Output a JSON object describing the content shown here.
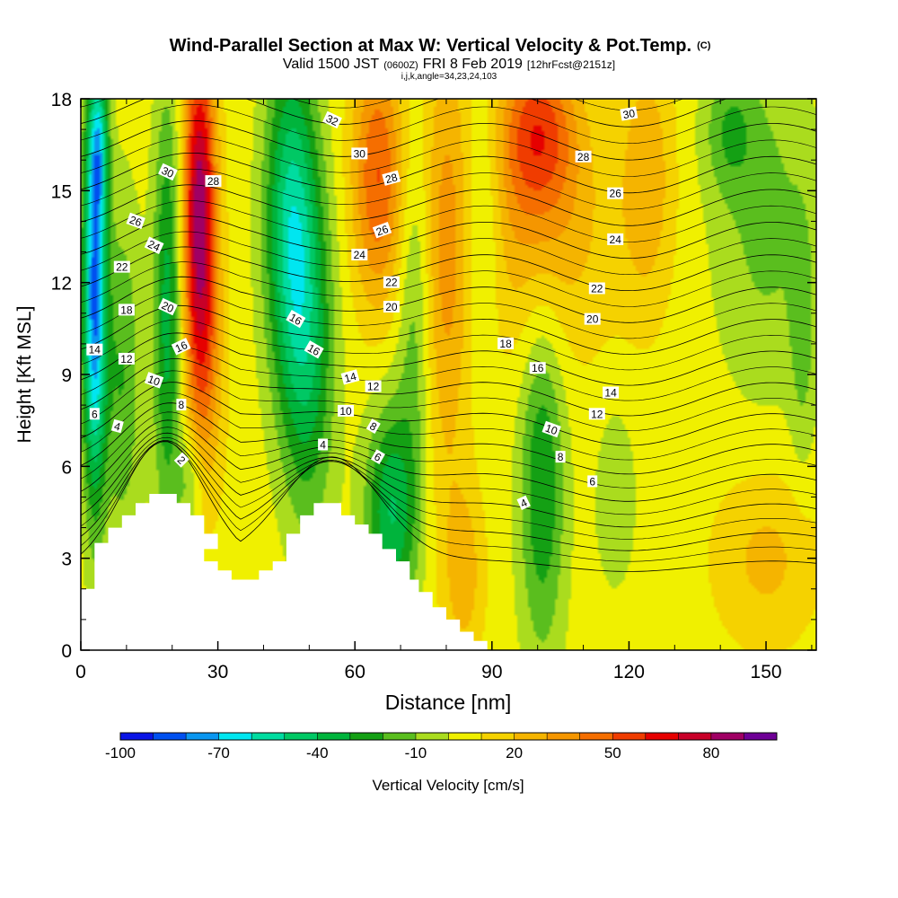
{
  "chart_data": {
    "type": "heatmap",
    "title": "Wind-Parallel Section at Max W: Vertical Velocity & Pot.Temp.",
    "title_units": "(C)",
    "subtitle_parts": [
      "Valid 1500 JST",
      "(0600Z)",
      "FRI 8 Feb 2019",
      "[12hrFcst@2151z]"
    ],
    "subtitle2": "i,j,k,angle=34,23,24,103",
    "xlabel": "Distance [nm]",
    "ylabel": "Height [Kft MSL]",
    "xlim": [
      0,
      161
    ],
    "ylim": [
      0,
      18
    ],
    "x_ticks": [
      0,
      30,
      60,
      90,
      120,
      150
    ],
    "y_ticks": [
      0,
      3,
      6,
      9,
      12,
      15,
      18
    ],
    "colorbar": {
      "label": "Vertical Velocity [cm/s]",
      "tick_labels": [
        "-100",
        "-70",
        "-40",
        "-10",
        "20",
        "50",
        "80"
      ],
      "levels": [
        -100,
        -90,
        -80,
        -70,
        -60,
        -50,
        -40,
        -30,
        -20,
        -10,
        0,
        10,
        20,
        30,
        40,
        50,
        60,
        70,
        80,
        90
      ],
      "colors": [
        "#0a14e6",
        "#0050f0",
        "#0a96f0",
        "#00e6f0",
        "#00dca0",
        "#00c864",
        "#00b43c",
        "#14a014",
        "#5abe1e",
        "#aadc1e",
        "#f0f000",
        "#f5d200",
        "#f5b400",
        "#f59600",
        "#f56e00",
        "#f03c00",
        "#e60000",
        "#c80028",
        "#a00064",
        "#6e0096"
      ]
    },
    "velocity_field": {
      "background": 5,
      "features": [
        {
          "x": 3,
          "y": 11.5,
          "sx": 1.8,
          "sy": 4.5,
          "amp": -85
        },
        {
          "x": 4,
          "y": 16.5,
          "sx": 1.5,
          "sy": 1.8,
          "amp": -40
        },
        {
          "x": 9,
          "y": 9,
          "sx": 3,
          "sy": 4,
          "amp": -25
        },
        {
          "x": 19,
          "y": 11,
          "sx": 2.2,
          "sy": 5,
          "amp": -40
        },
        {
          "x": 26,
          "y": 14.5,
          "sx": 2.5,
          "sy": 3.8,
          "amp": 80
        },
        {
          "x": 27,
          "y": 9,
          "sx": 3,
          "sy": 3,
          "amp": 25
        },
        {
          "x": 24,
          "y": 5.5,
          "sx": 2,
          "sy": 1.2,
          "amp": -20
        },
        {
          "x": 46,
          "y": 14,
          "sx": 4,
          "sy": 4,
          "amp": -55
        },
        {
          "x": 50,
          "y": 9.5,
          "sx": 4,
          "sy": 4,
          "amp": -35
        },
        {
          "x": 65,
          "y": 15.5,
          "sx": 4,
          "sy": 3,
          "amp": 45
        },
        {
          "x": 68,
          "y": 4.5,
          "sx": 4,
          "sy": 2.5,
          "amp": -45
        },
        {
          "x": 73,
          "y": 11,
          "sx": 2.5,
          "sy": 4,
          "amp": -20
        },
        {
          "x": 80,
          "y": 13,
          "sx": 3.5,
          "sy": 6,
          "amp": 25
        },
        {
          "x": 84,
          "y": 2.5,
          "sx": 3,
          "sy": 2,
          "amp": 20
        },
        {
          "x": 88,
          "y": 14,
          "sx": 3,
          "sy": 3,
          "amp": -20
        },
        {
          "x": 100,
          "y": 17,
          "sx": 6,
          "sy": 2,
          "amp": 45
        },
        {
          "x": 100,
          "y": 13.5,
          "sx": 12,
          "sy": 3,
          "amp": 22
        },
        {
          "x": 101,
          "y": 5.5,
          "sx": 3.5,
          "sy": 4,
          "amp": -35
        },
        {
          "x": 117,
          "y": 5,
          "sx": 3,
          "sy": 2,
          "amp": -15
        },
        {
          "x": 124,
          "y": 15.5,
          "sx": 4,
          "sy": 3,
          "amp": 22
        },
        {
          "x": 150,
          "y": 14,
          "sx": 8,
          "sy": 4,
          "amp": -18
        },
        {
          "x": 142,
          "y": 17,
          "sx": 4,
          "sy": 1.5,
          "amp": -20
        },
        {
          "x": 150,
          "y": 3,
          "sx": 8,
          "sy": 2,
          "amp": 18
        },
        {
          "x": 158,
          "y": 10,
          "sx": 2,
          "sy": 3,
          "amp": -15
        }
      ]
    },
    "theta_contours": {
      "levels": [
        2,
        4,
        6,
        8,
        10,
        12,
        14,
        16,
        18,
        20,
        22,
        24,
        26,
        28,
        30,
        32
      ],
      "labels": [
        {
          "text": "32",
          "x": 55,
          "y": 17.3,
          "angle": 25
        },
        {
          "text": "30",
          "x": 19,
          "y": 15.6,
          "angle": 25
        },
        {
          "text": "30",
          "x": 61,
          "y": 16.2,
          "angle": 0
        },
        {
          "text": "30",
          "x": 120,
          "y": 17.5,
          "angle": -10
        },
        {
          "text": "28",
          "x": 29,
          "y": 15.3,
          "angle": 0
        },
        {
          "text": "28",
          "x": 68,
          "y": 15.4,
          "angle": -15
        },
        {
          "text": "28",
          "x": 110,
          "y": 16.1,
          "angle": 0
        },
        {
          "text": "26",
          "x": 12,
          "y": 14.0,
          "angle": 20
        },
        {
          "text": "26",
          "x": 66,
          "y": 13.7,
          "angle": -20
        },
        {
          "text": "26",
          "x": 117,
          "y": 14.9,
          "angle": 0
        },
        {
          "text": "24",
          "x": 16,
          "y": 13.2,
          "angle": 25
        },
        {
          "text": "24",
          "x": 61,
          "y": 12.9,
          "angle": 0
        },
        {
          "text": "24",
          "x": 117,
          "y": 13.4,
          "angle": 0
        },
        {
          "text": "22",
          "x": 9,
          "y": 12.5,
          "angle": 0
        },
        {
          "text": "22",
          "x": 68,
          "y": 12.0,
          "angle": 0
        },
        {
          "text": "22",
          "x": 113,
          "y": 11.8,
          "angle": 0
        },
        {
          "text": "20",
          "x": 19,
          "y": 11.2,
          "angle": 25
        },
        {
          "text": "20",
          "x": 68,
          "y": 11.2,
          "angle": 0
        },
        {
          "text": "20",
          "x": 112,
          "y": 10.8,
          "angle": 0
        },
        {
          "text": "18",
          "x": 10,
          "y": 11.1,
          "angle": 0
        },
        {
          "text": "18",
          "x": 93,
          "y": 10.0,
          "angle": 0
        },
        {
          "text": "16",
          "x": 47,
          "y": 10.8,
          "angle": 30
        },
        {
          "text": "16",
          "x": 51,
          "y": 9.8,
          "angle": 30
        },
        {
          "text": "16",
          "x": 22,
          "y": 9.9,
          "angle": -25
        },
        {
          "text": "16",
          "x": 100,
          "y": 9.2,
          "angle": 0
        },
        {
          "text": "14",
          "x": 3,
          "y": 9.8,
          "angle": 0
        },
        {
          "text": "14",
          "x": 59,
          "y": 8.9,
          "angle": -15
        },
        {
          "text": "14",
          "x": 116,
          "y": 8.4,
          "angle": 0
        },
        {
          "text": "12",
          "x": 10,
          "y": 9.5,
          "angle": 0
        },
        {
          "text": "12",
          "x": 64,
          "y": 8.6,
          "angle": 0
        },
        {
          "text": "12",
          "x": 113,
          "y": 7.7,
          "angle": 0
        },
        {
          "text": "10",
          "x": 16,
          "y": 8.8,
          "angle": 20
        },
        {
          "text": "10",
          "x": 58,
          "y": 7.8,
          "angle": 0
        },
        {
          "text": "10",
          "x": 103,
          "y": 7.2,
          "angle": 20
        },
        {
          "text": "8",
          "x": 22,
          "y": 8.0,
          "angle": 0
        },
        {
          "text": "8",
          "x": 64,
          "y": 7.3,
          "angle": 30
        },
        {
          "text": "8",
          "x": 105,
          "y": 6.3,
          "angle": 0
        },
        {
          "text": "6",
          "x": 3,
          "y": 7.7,
          "angle": 0
        },
        {
          "text": "6",
          "x": 65,
          "y": 6.3,
          "angle": 30
        },
        {
          "text": "6",
          "x": 112,
          "y": 5.5,
          "angle": 0
        },
        {
          "text": "4",
          "x": 8,
          "y": 7.3,
          "angle": 15
        },
        {
          "text": "4",
          "x": 53,
          "y": 6.7,
          "angle": 0
        },
        {
          "text": "4",
          "x": 97,
          "y": 4.8,
          "angle": -25
        },
        {
          "text": "2",
          "x": 22,
          "y": 6.2,
          "angle": 45
        }
      ]
    },
    "terrain_kft": [
      [
        0,
        2.0
      ],
      [
        3,
        2.0
      ],
      [
        3,
        3.5
      ],
      [
        6,
        3.5
      ],
      [
        6,
        4.0
      ],
      [
        9,
        4.0
      ],
      [
        9,
        4.4
      ],
      [
        12,
        4.4
      ],
      [
        12,
        4.8
      ],
      [
        15,
        4.8
      ],
      [
        15,
        5.1
      ],
      [
        21,
        5.1
      ],
      [
        21,
        4.8
      ],
      [
        24,
        4.8
      ],
      [
        24,
        4.4
      ],
      [
        27,
        4.4
      ],
      [
        27,
        3.8
      ],
      [
        30,
        3.8
      ],
      [
        30,
        3.3
      ],
      [
        27,
        3.3
      ],
      [
        27,
        2.9
      ],
      [
        30,
        2.9
      ],
      [
        30,
        2.6
      ],
      [
        33,
        2.6
      ],
      [
        33,
        2.3
      ],
      [
        39,
        2.3
      ],
      [
        39,
        2.6
      ],
      [
        42,
        2.6
      ],
      [
        42,
        2.9
      ],
      [
        45,
        2.9
      ],
      [
        45,
        3.8
      ],
      [
        48,
        3.8
      ],
      [
        48,
        4.4
      ],
      [
        51,
        4.4
      ],
      [
        51,
        4.8
      ],
      [
        57,
        4.8
      ],
      [
        57,
        4.4
      ],
      [
        60,
        4.4
      ],
      [
        60,
        4.1
      ],
      [
        63,
        4.1
      ],
      [
        63,
        3.8
      ],
      [
        66,
        3.8
      ],
      [
        66,
        3.3
      ],
      [
        69,
        3.3
      ],
      [
        69,
        2.9
      ],
      [
        72,
        2.9
      ],
      [
        72,
        2.3
      ],
      [
        74,
        2.3
      ],
      [
        74,
        1.9
      ],
      [
        77,
        1.9
      ],
      [
        77,
        1.4
      ],
      [
        80,
        1.4
      ],
      [
        80,
        1.0
      ],
      [
        83,
        1.0
      ],
      [
        83,
        0.6
      ],
      [
        86,
        0.6
      ],
      [
        86,
        0.3
      ],
      [
        89,
        0.3
      ],
      [
        89,
        0
      ]
    ]
  }
}
